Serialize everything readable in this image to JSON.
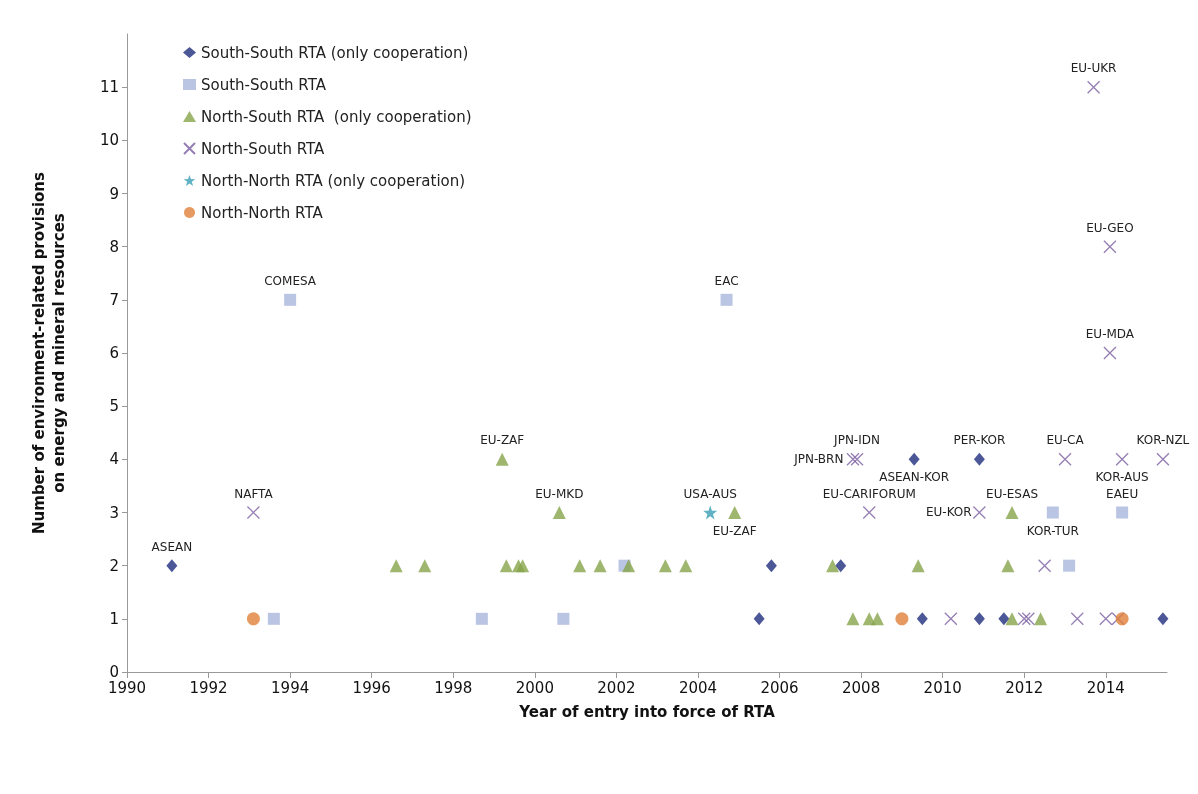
{
  "chart_data": {
    "type": "scatter",
    "xlabel": "Year of entry into force of RTA",
    "ylabel": "Number of environment-related provisions\non energy and mineral resources",
    "xlim": [
      1990,
      2015.5
    ],
    "xticks": [
      1990,
      1992,
      1994,
      1996,
      1998,
      2000,
      2002,
      2004,
      2006,
      2008,
      2010,
      2012,
      2014
    ],
    "ylim": [
      0,
      12
    ],
    "yticks": [
      0,
      1,
      2,
      3,
      4,
      5,
      6,
      7,
      8,
      9,
      10,
      11
    ],
    "legend": "top left",
    "series": [
      {
        "name": "South-South RTA (only cooperation)",
        "color": "#1f2d7e",
        "marker": "diamond",
        "x": [
          1991.1,
          2000.6,
          2005.5,
          2005.8,
          2007.5,
          2008.3,
          2009.3,
          2009.5,
          2010.9,
          2010.9,
          2011.5,
          2015.4
        ],
        "values": [
          2,
          null,
          1,
          2,
          2,
          null,
          4,
          1,
          4,
          1,
          1,
          1
        ]
      },
      {
        "name": "South-South RTA",
        "color": "#a9b5dc",
        "marker": "square",
        "x": [
          1993.6,
          1994.0,
          1998.7,
          2000.7,
          2002.2,
          2004.7,
          2012.7,
          2013.1,
          2014.4
        ],
        "values": [
          1,
          7,
          1,
          1,
          2,
          7,
          3,
          2,
          3
        ]
      },
      {
        "name": "North-South RTA  (only cooperation)",
        "color": "#86a44a",
        "marker": "triangle",
        "x": [
          1996.6,
          1997.3,
          1999.2,
          1999.3,
          1999.6,
          1999.7,
          2000.6,
          2001.1,
          2001.6,
          2002.3,
          2003.2,
          2003.7,
          2004.9,
          2007.3,
          2007.8,
          2008.2,
          2008.4,
          2009.4,
          2011.6,
          2011.7,
          2011.7,
          2012.4
        ],
        "values": [
          2,
          2,
          4,
          2,
          2,
          2,
          3,
          2,
          2,
          2,
          2,
          2,
          3,
          2,
          1,
          1,
          1,
          2,
          2,
          3,
          1,
          1
        ]
      },
      {
        "name": "North-South RTA",
        "color": "#7a5ea0",
        "marker": "cross",
        "x": [
          1993.1,
          2007.8,
          2007.9,
          2008.2,
          2010.2,
          2010.9,
          2012.0,
          2012.1,
          2012.5,
          2013.0,
          2013.3,
          2013.7,
          2014.0,
          2014.1,
          2014.1,
          2014.4,
          2014.3,
          2015.4
        ],
        "values": [
          3,
          4,
          4,
          3,
          1,
          3,
          1,
          1,
          2,
          4,
          1,
          11,
          1,
          8,
          6,
          4,
          1,
          4
        ]
      },
      {
        "name": "North-North RTA (only cooperation)",
        "color": "#3a9fb5",
        "marker": "star",
        "x": [
          2004.3
        ],
        "values": [
          3
        ]
      },
      {
        "name": "North-North RTA",
        "color": "#e07f38",
        "marker": "circle",
        "x": [
          1993.1,
          2009.0,
          2014.4
        ],
        "values": [
          1,
          1,
          1
        ]
      }
    ],
    "annotations": [
      {
        "text": "ASEAN",
        "x": 1991.1,
        "y": 2
      },
      {
        "text": "NAFTA",
        "x": 1993.1,
        "y": 3
      },
      {
        "text": "COMESA",
        "x": 1994.0,
        "y": 7
      },
      {
        "text": "EU-ZAF",
        "x": 1999.2,
        "y": 4
      },
      {
        "text": "EU-MKD",
        "x": 2000.6,
        "y": 3
      },
      {
        "text": "USA-AUS",
        "x": 2004.3,
        "y": 3
      },
      {
        "text": "EAC",
        "x": 2004.7,
        "y": 7
      },
      {
        "text": "EU-ZAF",
        "x": 2004.9,
        "y": 3
      },
      {
        "text": "JPN-IDN",
        "x": 2007.9,
        "y": 4
      },
      {
        "text": "JPN-BRN",
        "x": 2007.8,
        "y": 4
      },
      {
        "text": "EU-CARIFORUM",
        "x": 2008.2,
        "y": 3
      },
      {
        "text": "PER-KOR",
        "x": 2010.9,
        "y": 4
      },
      {
        "text": "ASEAN-KOR",
        "x": 2009.3,
        "y": 4
      },
      {
        "text": "EU-ESAS",
        "x": 2011.7,
        "y": 3
      },
      {
        "text": "EU-KOR",
        "x": 2010.9,
        "y": 3
      },
      {
        "text": "KOR-TUR",
        "x": 2012.7,
        "y": 3
      },
      {
        "text": "EU-CA",
        "x": 2013.0,
        "y": 4
      },
      {
        "text": "EU-UKR",
        "x": 2013.7,
        "y": 11
      },
      {
        "text": "EU-GEO",
        "x": 2014.1,
        "y": 8
      },
      {
        "text": "EU-MDA",
        "x": 2014.1,
        "y": 6
      },
      {
        "text": "KOR-NZL",
        "x": 2015.4,
        "y": 4
      },
      {
        "text": "KOR-AUS",
        "x": 2014.4,
        "y": 4
      },
      {
        "text": "EAEU",
        "x": 2014.4,
        "y": 3
      }
    ]
  }
}
